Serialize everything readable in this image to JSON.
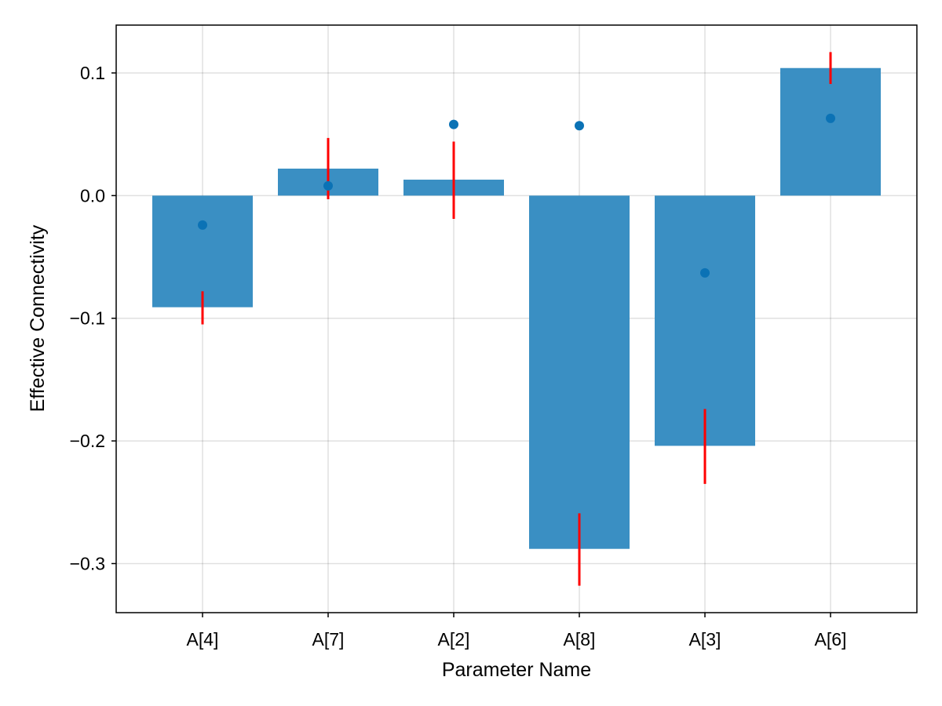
{
  "chart_data": {
    "type": "bar",
    "title": "",
    "xlabel": "Parameter Name",
    "ylabel": "Effective Connectivity",
    "categories": [
      "A[4]",
      "A[7]",
      "A[2]",
      "A[8]",
      "A[3]",
      "A[6]"
    ],
    "series": [
      {
        "kind": "bar",
        "values": [
          -0.091,
          0.022,
          0.013,
          -0.288,
          -0.204,
          0.104
        ],
        "color": "#3a8fc3"
      },
      {
        "kind": "errorbar",
        "center": [
          -0.091,
          0.022,
          0.013,
          -0.288,
          -0.204,
          0.104
        ],
        "low": [
          -0.105,
          -0.003,
          -0.019,
          -0.318,
          -0.235,
          0.091
        ],
        "high": [
          -0.078,
          0.047,
          0.044,
          -0.259,
          -0.174,
          0.117
        ],
        "color": "#ff0000"
      },
      {
        "kind": "scatter",
        "values": [
          -0.024,
          0.008,
          0.058,
          0.057,
          -0.063,
          0.063
        ],
        "color": "#0b72b5"
      }
    ],
    "ylim": [
      -0.34,
      0.139
    ],
    "yticks": [
      {
        "value": 0.1,
        "label": "0.1"
      },
      {
        "value": 0.0,
        "label": "0.0"
      },
      {
        "value": -0.1,
        "label": "−0.1"
      },
      {
        "value": -0.2,
        "label": "−0.2"
      },
      {
        "value": -0.3,
        "label": "−0.3"
      }
    ],
    "grid": true,
    "legend": "none"
  }
}
